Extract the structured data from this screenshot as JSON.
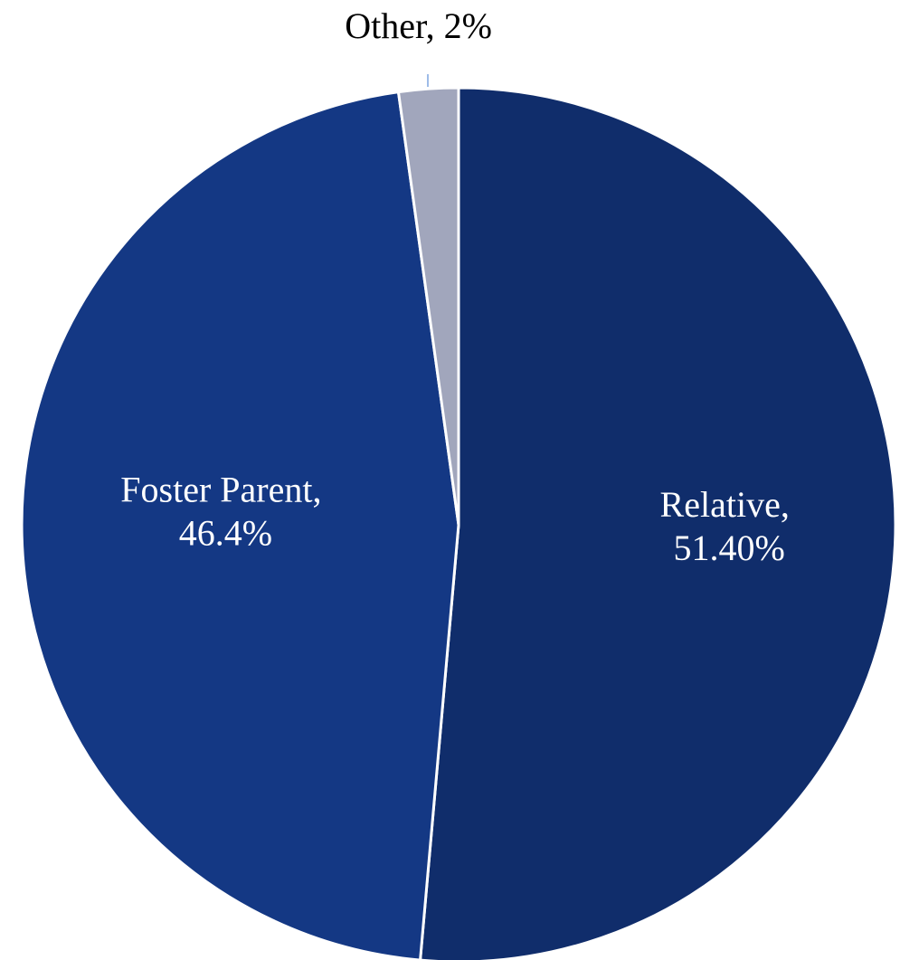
{
  "chart_data": {
    "type": "pie",
    "slices": [
      {
        "label": "Relative",
        "display": "51.40%",
        "value": 51.4,
        "color": "#102d6b"
      },
      {
        "label": "Foster Parent",
        "display": "46.4%",
        "value": 46.4,
        "color": "#143884"
      },
      {
        "label": "Other",
        "display": "2%",
        "value": 2.2,
        "color": "#a1a6bc"
      }
    ],
    "start_angle": "12 o'clock",
    "direction": "clockwise",
    "label_color": "#ffffff",
    "outside_label_color": "#000000",
    "leader_line_color": "#7ea6e0",
    "border_color": "#ffffff"
  }
}
